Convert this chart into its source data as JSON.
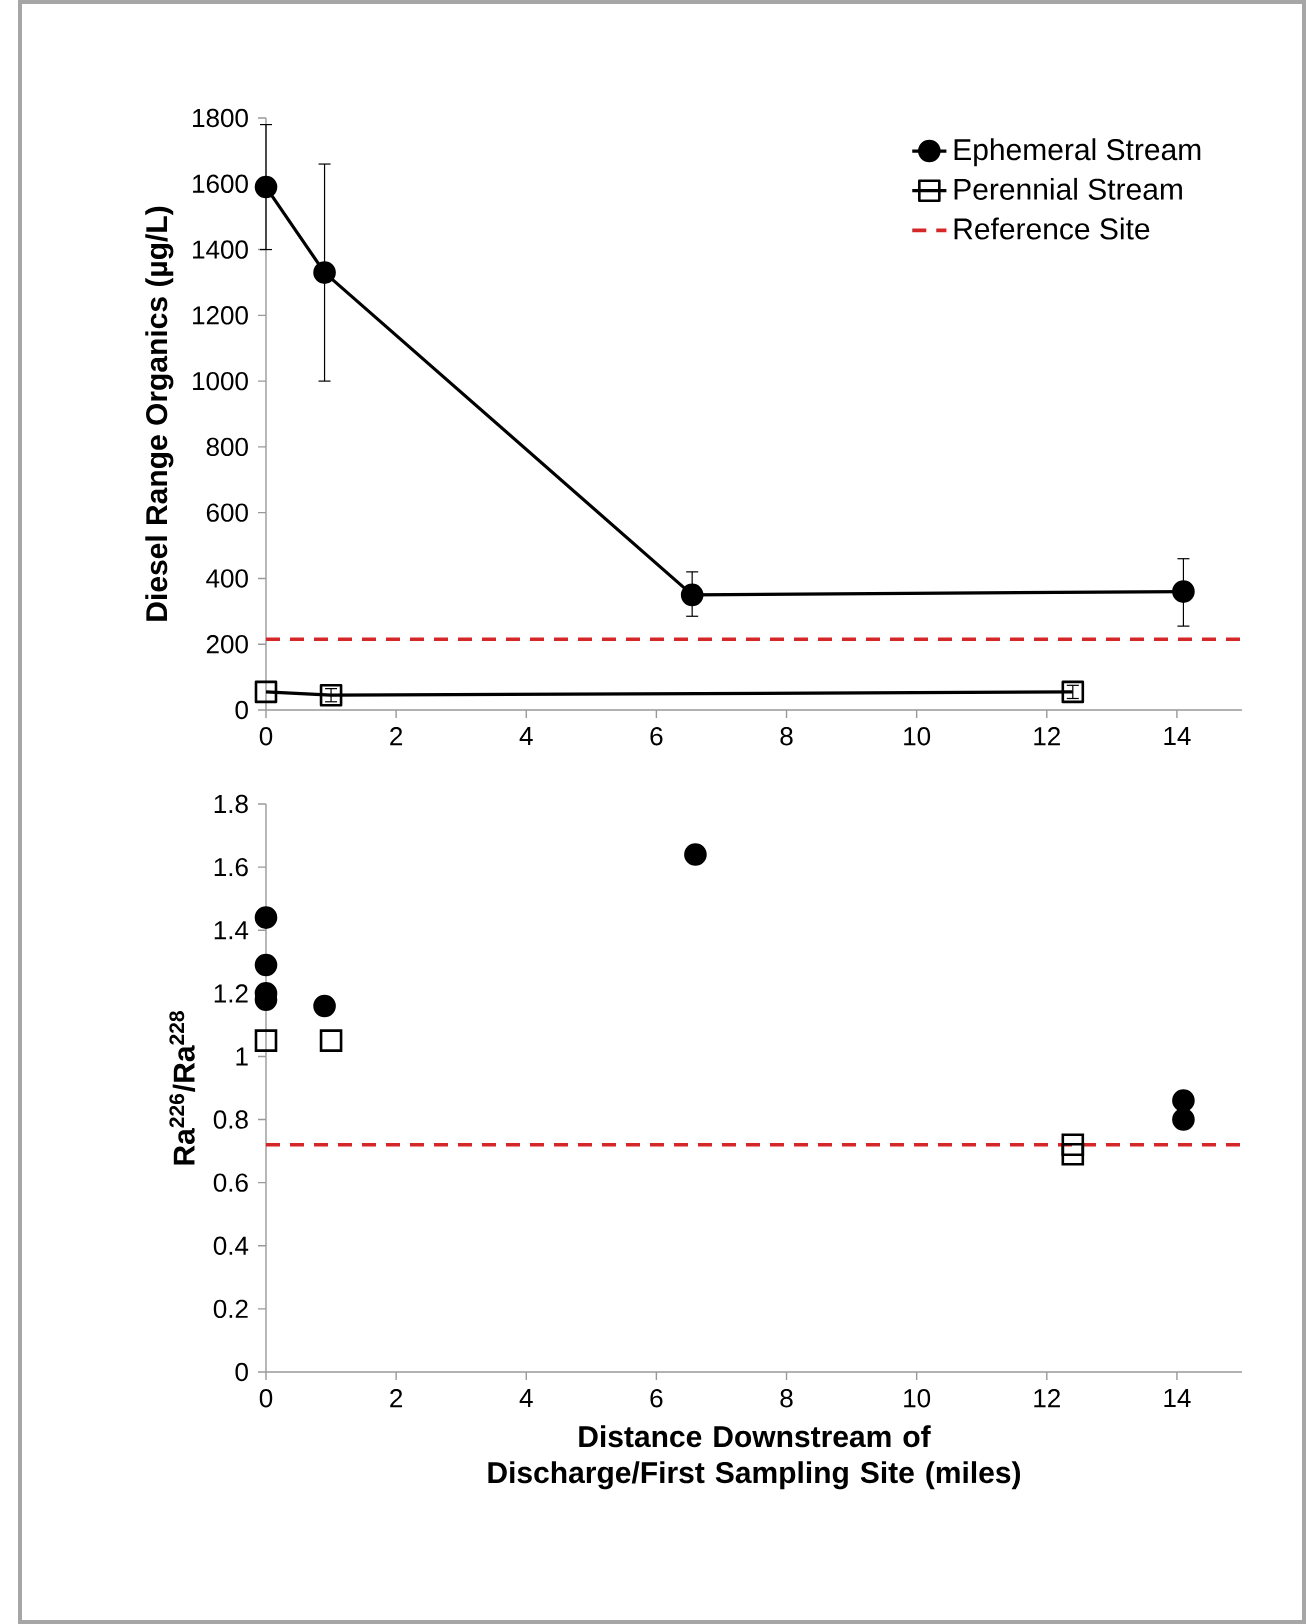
{
  "chart_data": [
    {
      "type": "line",
      "ylabel": "Diesel Range Organics (µg/L)",
      "xlim": [
        0,
        15
      ],
      "xticks": [
        0,
        2,
        4,
        6,
        8,
        10,
        12,
        14
      ],
      "ylim": [
        0,
        1800
      ],
      "yticks": [
        0,
        200,
        400,
        600,
        800,
        1000,
        1200,
        1400,
        1600,
        1800
      ],
      "legend": "top right",
      "grid": false,
      "series": [
        {
          "name": "Ephemeral Stream",
          "color": "#000000",
          "marker": "circle",
          "x": [
            0,
            0.9,
            6.55,
            14.1
          ],
          "values": [
            1590,
            1330,
            350,
            360
          ],
          "errors": [
            190,
            330,
            [
              285,
              420
            ],
            [
              255,
              460
            ]
          ]
        },
        {
          "name": "Perennial Stream",
          "color": "#000000",
          "marker": "square",
          "x": [
            0,
            1.0,
            12.4
          ],
          "values": [
            55,
            45,
            55
          ],
          "errors": [
            null,
            20,
            20
          ]
        }
      ],
      "ref_lines": [
        {
          "axis": "y",
          "value": 215,
          "label": "Reference Site",
          "color": "#d62728",
          "line_style": "dashed"
        }
      ]
    },
    {
      "type": "scatter",
      "ylabel": "Ra$^{226}$/Ra$^{228}$",
      "xlabel": "Distance Downstream of Discharge/First Sampling Site (miles)",
      "xlim": [
        0,
        15
      ],
      "xticks": [
        0,
        2,
        4,
        6,
        8,
        10,
        12,
        14
      ],
      "ylim": [
        0,
        1.8
      ],
      "yticks": [
        0,
        0.2,
        0.4,
        0.6,
        0.8,
        1,
        1.2,
        1.4,
        1.6,
        1.8
      ],
      "grid": false,
      "series": [
        {
          "color": "#000000",
          "marker": "circle",
          "x": [
            0,
            0,
            0,
            0,
            0.9,
            6.6,
            14.1,
            14.1
          ],
          "values": [
            1.44,
            1.29,
            1.2,
            1.18,
            1.16,
            1.64,
            0.86,
            0.8
          ]
        },
        {
          "color": "#000000",
          "marker": "square",
          "x": [
            0,
            1.0,
            12.4,
            12.4
          ],
          "values": [
            1.05,
            1.05,
            0.72,
            0.69
          ]
        }
      ],
      "ref_lines": [
        {
          "axis": "y",
          "value": 0.72,
          "color": "#d62728",
          "line_style": "dashed"
        }
      ]
    }
  ]
}
